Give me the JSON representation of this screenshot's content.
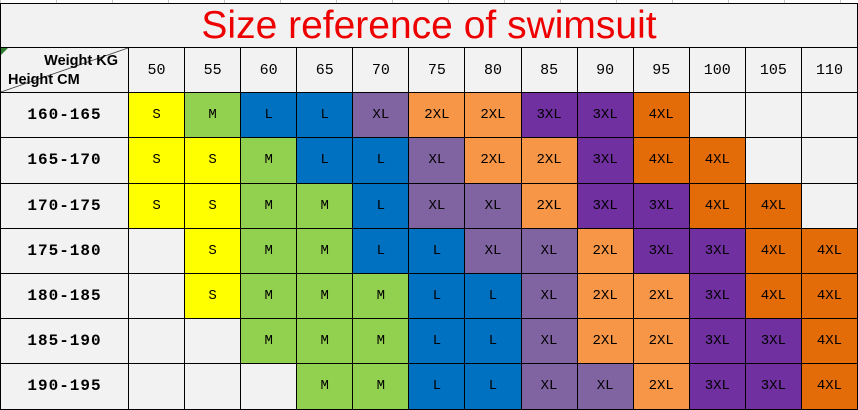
{
  "title": "Size reference of swimsuit",
  "corner": {
    "top_right_label": "Weight KG",
    "bottom_left_label": "Height CM"
  },
  "colors": {
    "title_red": "#EE0000",
    "header_bg": "#F2F2F2",
    "empty_cell_bg": "#F2F2F2",
    "border_black": "#000000",
    "corner_triangle_green": "#2E7D32"
  },
  "chart_data": {
    "type": "table",
    "title": "Size reference of swimsuit",
    "column_axis_label": "Weight KG",
    "row_axis_label": "Height CM",
    "columns": [
      "50",
      "55",
      "60",
      "65",
      "70",
      "75",
      "80",
      "85",
      "90",
      "95",
      "100",
      "105",
      "110"
    ],
    "rows": [
      "160-165",
      "165-170",
      "170-175",
      "175-180",
      "180-185",
      "185-190",
      "190-195"
    ],
    "values": [
      [
        "S",
        "M",
        "L",
        "L",
        "XL",
        "2XL",
        "2XL",
        "3XL",
        "3XL",
        "4XL",
        "",
        "",
        ""
      ],
      [
        "S",
        "S",
        "M",
        "L",
        "L",
        "XL",
        "2XL",
        "2XL",
        "3XL",
        "4XL",
        "4XL",
        "",
        ""
      ],
      [
        "S",
        "S",
        "M",
        "M",
        "L",
        "XL",
        "XL",
        "2XL",
        "3XL",
        "3XL",
        "4XL",
        "4XL",
        ""
      ],
      [
        "",
        "S",
        "M",
        "M",
        "L",
        "L",
        "XL",
        "XL",
        "2XL",
        "3XL",
        "3XL",
        "4XL",
        "4XL"
      ],
      [
        "",
        "S",
        "M",
        "M",
        "M",
        "L",
        "L",
        "XL",
        "2XL",
        "2XL",
        "3XL",
        "4XL",
        "4XL"
      ],
      [
        "",
        "",
        "M",
        "M",
        "M",
        "L",
        "L",
        "XL",
        "2XL",
        "2XL",
        "3XL",
        "3XL",
        "4XL"
      ],
      [
        "",
        "",
        "",
        "M",
        "M",
        "L",
        "L",
        "XL",
        "XL",
        "2XL",
        "3XL",
        "3XL",
        "4XL"
      ]
    ],
    "size_colors": {
      "S": "#FFFF00",
      "M": "#92D050",
      "L": "#0070C0",
      "XL": "#8064A2",
      "2XL": "#F79646",
      "3XL": "#7030A0",
      "4XL": "#E36C09"
    }
  }
}
